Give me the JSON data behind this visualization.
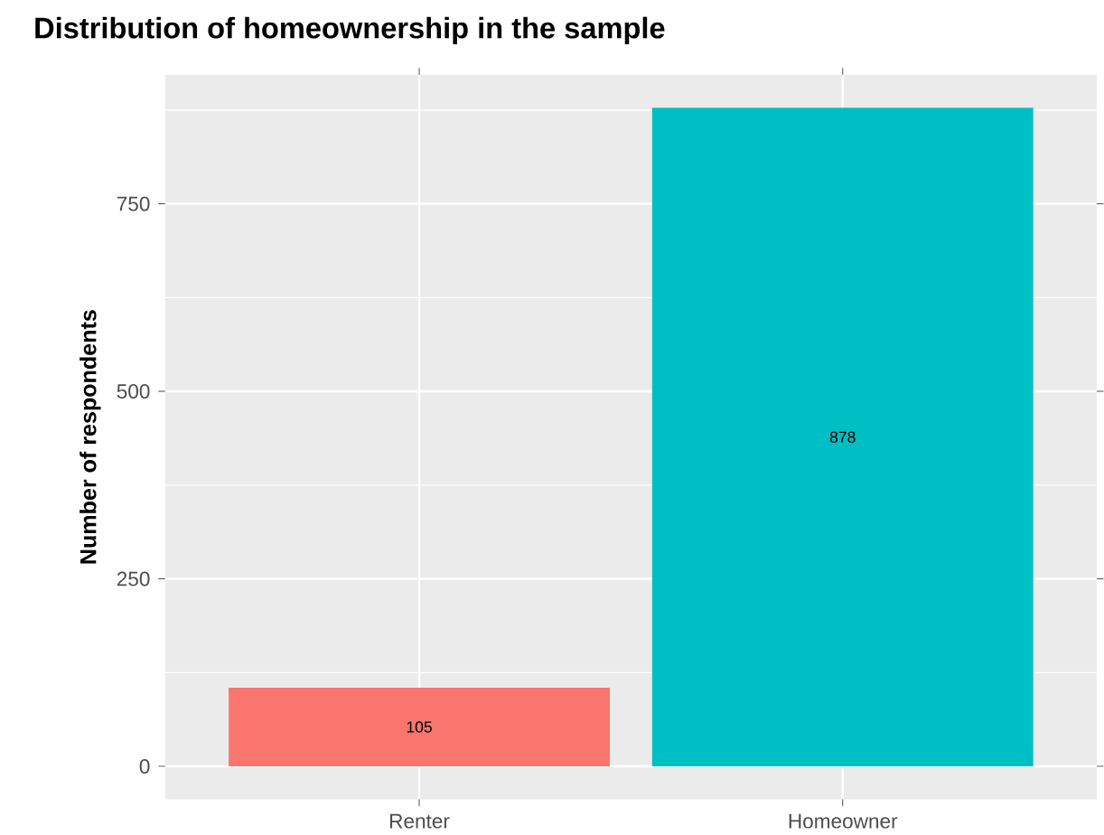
{
  "chart_data": {
    "type": "bar",
    "title": "Distribution of homeownership in the sample",
    "ylabel": "Number of respondents",
    "categories": [
      "Renter",
      "Homeowner"
    ],
    "values": [
      105,
      878
    ],
    "colors": [
      "#f8766d",
      "#00bfc4"
    ],
    "ylim": [
      -43.9,
      921.9
    ],
    "yticks": [
      0,
      250,
      500,
      750
    ],
    "grid": true,
    "data_labels": true
  }
}
